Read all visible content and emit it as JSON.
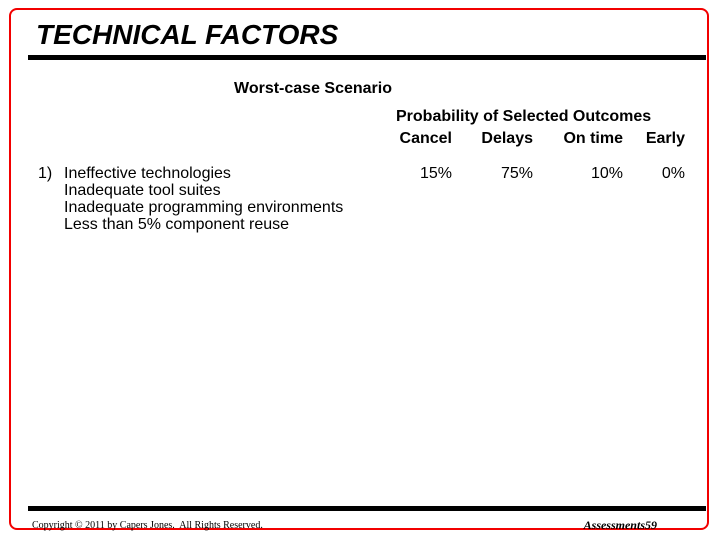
{
  "slide": {
    "title": "TECHNICAL FACTORS",
    "subtitle": "Worst-case Scenario",
    "table": {
      "header": "Probability of Selected Outcomes",
      "columns": [
        "Cancel",
        "Delays",
        "On time",
        "Early"
      ],
      "row": {
        "number": "1)",
        "lines": [
          "Ineffective technologies",
          "Inadequate tool suites",
          "Inadequate programming environments",
          "Less than 5% component reuse"
        ],
        "values": [
          "15%",
          "75%",
          "10%",
          "0%"
        ]
      }
    },
    "footer": {
      "copyright": "Copyright © 2011 by Capers Jones.  All Rights Reserved.",
      "page_label": "Assessments59"
    },
    "colors": {
      "border": "#f20000",
      "rule": "#000000"
    }
  }
}
